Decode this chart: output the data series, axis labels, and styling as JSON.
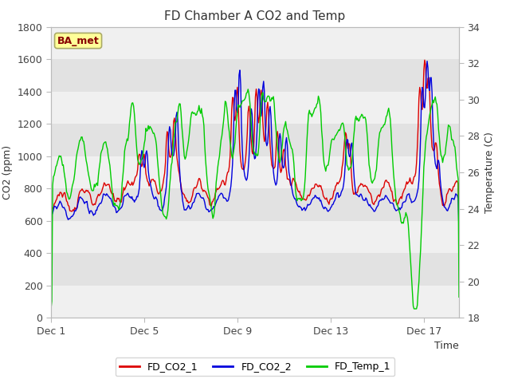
{
  "title": "FD Chamber A CO2 and Temp",
  "xlabel": "Time",
  "ylabel_left": "CO2 (ppm)",
  "ylabel_right": "Temperature (C)",
  "ylim_left": [
    0,
    1800
  ],
  "ylim_right": [
    18,
    34
  ],
  "yticks_left": [
    0,
    200,
    400,
    600,
    800,
    1000,
    1200,
    1400,
    1600,
    1800
  ],
  "yticks_right": [
    18,
    20,
    22,
    24,
    26,
    28,
    30,
    32,
    34
  ],
  "xtick_labels": [
    "Dec 1",
    "Dec 5",
    "Dec 9",
    "Dec 13",
    "Dec 17"
  ],
  "xtick_positions": [
    0,
    4,
    8,
    12,
    16
  ],
  "xlim": [
    0,
    17.5
  ],
  "color_co2_1": "#dd0000",
  "color_co2_2": "#0000dd",
  "color_temp_1": "#00cc00",
  "legend_labels": [
    "FD_CO2_1",
    "FD_CO2_2",
    "FD_Temp_1"
  ],
  "annotation_text": "BA_met",
  "annotation_color": "#880000",
  "annotation_bg": "#ffff99",
  "annotation_edge": "#aaaa66",
  "bg_color": "#ffffff",
  "band_light": "#f0f0f0",
  "band_dark": "#e2e2e2",
  "title_fontsize": 11,
  "axis_fontsize": 9,
  "tick_fontsize": 9,
  "linewidth": 1.0
}
